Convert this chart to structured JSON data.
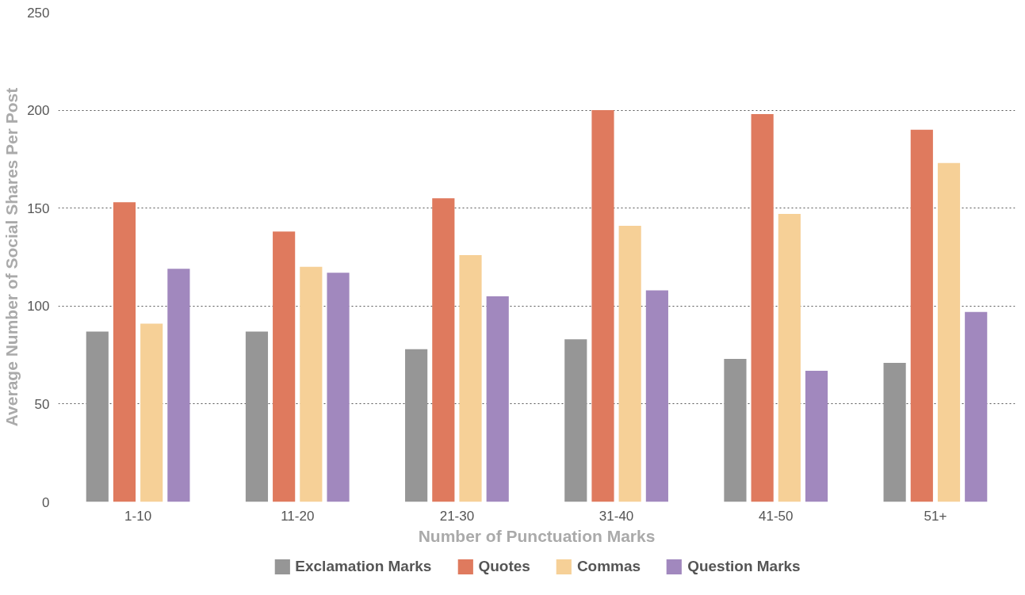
{
  "chart_data": {
    "type": "bar",
    "xlabel": "Number of Punctuation Marks",
    "ylabel": "Average Number of Social Shares Per Post",
    "categories": [
      "1-10",
      "11-20",
      "21-30",
      "31-40",
      "41-50",
      "51+"
    ],
    "series": [
      {
        "name": "Exclamation Marks",
        "color": "#969696",
        "values": [
          87,
          87,
          78,
          83,
          73,
          71
        ]
      },
      {
        "name": "Quotes",
        "color": "#df7a5e",
        "values": [
          153,
          138,
          155,
          200,
          198,
          190
        ]
      },
      {
        "name": "Commas",
        "color": "#f6d097",
        "values": [
          91,
          120,
          126,
          141,
          147,
          173
        ]
      },
      {
        "name": "Question Marks",
        "color": "#a188be",
        "values": [
          119,
          117,
          105,
          108,
          67,
          97
        ]
      }
    ],
    "ylim": [
      0,
      250
    ],
    "yticks": [
      0,
      50,
      100,
      150,
      200,
      250
    ],
    "grid": "y",
    "legend": "bottom"
  }
}
